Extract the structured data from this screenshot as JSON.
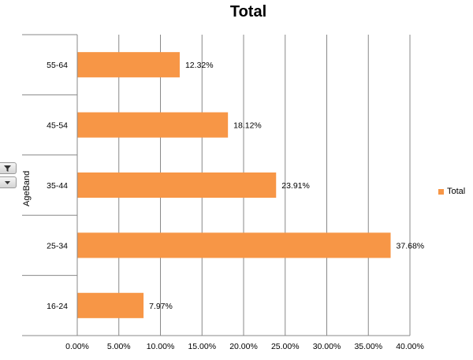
{
  "chart_data": {
    "type": "bar",
    "orientation": "horizontal",
    "title": "Total",
    "ylabel": "AgeBand",
    "xlabel": "",
    "categories": [
      "55-64",
      "45-54",
      "35-44",
      "25-34",
      "16-24"
    ],
    "series": [
      {
        "name": "Total",
        "values": [
          12.32,
          18.12,
          23.91,
          37.68,
          7.97
        ],
        "labels": [
          "12.32%",
          "18.12%",
          "23.91%",
          "37.68%",
          "7.97%"
        ],
        "color": "#f79646"
      }
    ],
    "xlim": [
      0,
      40
    ],
    "xticks": [
      0,
      5,
      10,
      15,
      20,
      25,
      30,
      35,
      40
    ],
    "xtick_labels": [
      "0.00%",
      "5.00%",
      "10.00%",
      "15.00%",
      "20.00%",
      "25.00%",
      "30.00%",
      "35.00%",
      "40.00%"
    ],
    "grid": "vertical",
    "gridline_color": "#888888",
    "legend": {
      "position": "right",
      "entries": [
        "Total"
      ]
    }
  },
  "field_buttons": {
    "filter_icon": "funnel-icon",
    "dropdown_icon": "triangle-down-icon"
  }
}
